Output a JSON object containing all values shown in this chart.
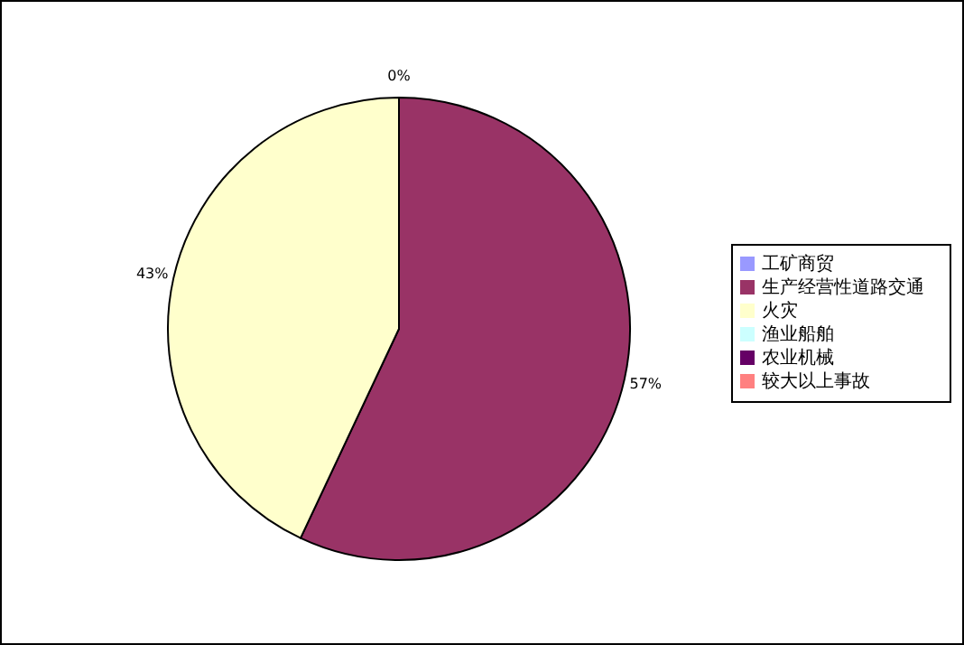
{
  "chart_data": {
    "type": "pie",
    "categories": [
      "工矿商贸",
      "生产经营性道路交通",
      "火灾",
      "渔业船舶",
      "农业机械",
      "较大以上事故"
    ],
    "values": [
      0,
      57,
      43,
      0,
      0,
      0
    ],
    "colors": [
      "#9999ff",
      "#993366",
      "#ffffcc",
      "#ccffff",
      "#660066",
      "#ff8080"
    ],
    "value_labels": [
      "0%",
      "57%",
      "43%",
      null,
      null,
      null
    ],
    "legend": "right"
  }
}
